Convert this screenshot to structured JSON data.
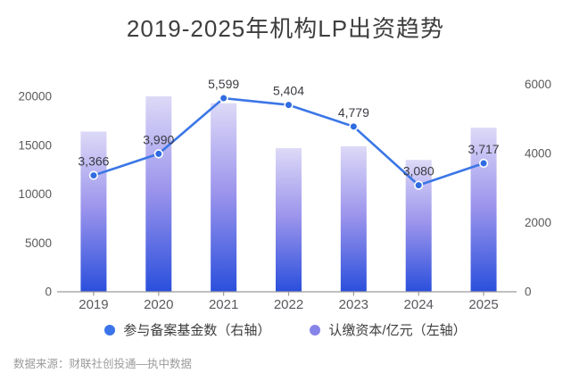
{
  "title": "2019-2025年机构LP出资趋势",
  "source": "数据来源：财联社创投通—执中数据",
  "legend": {
    "items": [
      {
        "label": "参与备案基金数（右轴）",
        "color": "#3b74e8"
      },
      {
        "label": "认缴资本/亿元（左轴）",
        "color": "#8683e9"
      }
    ]
  },
  "colors": {
    "line": "#3b76e6",
    "dot": "#2f6ce2",
    "bar_top": "#ddd9f7",
    "bar_mid": "#9b94ec",
    "bar_bottom": "#2a4fdc",
    "axis": "#9a9a9a",
    "tick_text": "#5a5a5a",
    "data_label": "#3a3a42",
    "title_text": "#3e3e3e",
    "source_text": "#9b9b9b"
  },
  "chart_data": {
    "type": "combo",
    "title": "2019-2025年机构LP出资趋势",
    "categories": [
      "2019",
      "2020",
      "2021",
      "2022",
      "2023",
      "2024",
      "2025"
    ],
    "series": [
      {
        "name": "认缴资本/亿元（左轴）",
        "type": "bar",
        "axis": "left",
        "values": [
          16400,
          20000,
          19300,
          14700,
          14900,
          13500,
          16800
        ]
      },
      {
        "name": "参与备案基金数（右轴）",
        "type": "line",
        "axis": "right",
        "values": [
          3366,
          3990,
          5599,
          5404,
          4779,
          3080,
          3717
        ],
        "labels": [
          "3,366",
          "3,990",
          "5,599",
          "5,404",
          "4,779",
          "3,080",
          "3,717"
        ]
      }
    ],
    "left_axis": {
      "label": "认缴资本/亿元",
      "ticks": [
        0,
        5000,
        10000,
        15000,
        20000
      ],
      "max": 20000
    },
    "right_axis": {
      "label": "参与备案基金数",
      "ticks": [
        0,
        2000,
        4000,
        6000
      ],
      "max": 6000
    },
    "grid": false,
    "legend_position": "bottom"
  }
}
